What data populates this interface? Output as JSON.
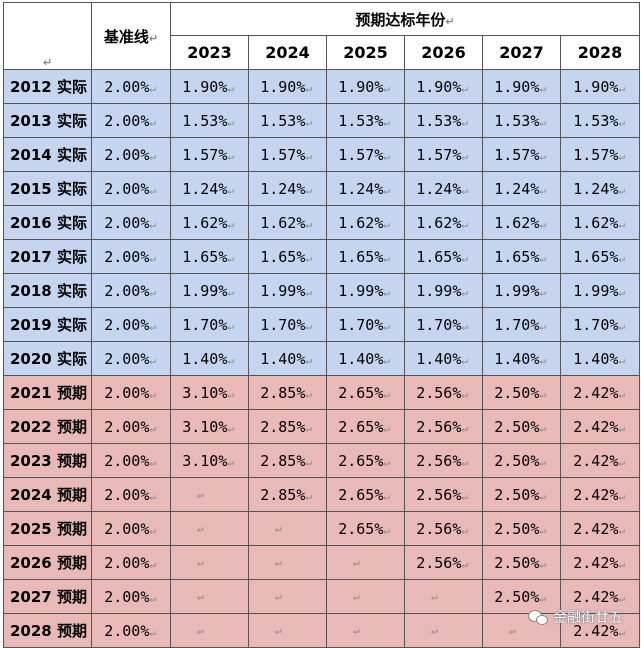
{
  "header": {
    "baseline_label": "基准线",
    "target_label": "预期达标年份",
    "years": [
      "2023",
      "2024",
      "2025",
      "2026",
      "2027",
      "2028"
    ]
  },
  "rows": [
    {
      "label": "2012 实际",
      "type": "actual",
      "baseline": "2.00%",
      "values": [
        "1.90%",
        "1.90%",
        "1.90%",
        "1.90%",
        "1.90%",
        "1.90%"
      ]
    },
    {
      "label": "2013 实际",
      "type": "actual",
      "baseline": "2.00%",
      "values": [
        "1.53%",
        "1.53%",
        "1.53%",
        "1.53%",
        "1.53%",
        "1.53%"
      ]
    },
    {
      "label": "2014 实际",
      "type": "actual",
      "baseline": "2.00%",
      "values": [
        "1.57%",
        "1.57%",
        "1.57%",
        "1.57%",
        "1.57%",
        "1.57%"
      ]
    },
    {
      "label": "2015 实际",
      "type": "actual",
      "baseline": "2.00%",
      "values": [
        "1.24%",
        "1.24%",
        "1.24%",
        "1.24%",
        "1.24%",
        "1.24%"
      ]
    },
    {
      "label": "2016 实际",
      "type": "actual",
      "baseline": "2.00%",
      "values": [
        "1.62%",
        "1.62%",
        "1.62%",
        "1.62%",
        "1.62%",
        "1.62%"
      ]
    },
    {
      "label": "2017 实际",
      "type": "actual",
      "baseline": "2.00%",
      "values": [
        "1.65%",
        "1.65%",
        "1.65%",
        "1.65%",
        "1.65%",
        "1.65%"
      ]
    },
    {
      "label": "2018 实际",
      "type": "actual",
      "baseline": "2.00%",
      "values": [
        "1.99%",
        "1.99%",
        "1.99%",
        "1.99%",
        "1.99%",
        "1.99%"
      ]
    },
    {
      "label": "2019 实际",
      "type": "actual",
      "baseline": "2.00%",
      "values": [
        "1.70%",
        "1.70%",
        "1.70%",
        "1.70%",
        "1.70%",
        "1.70%"
      ]
    },
    {
      "label": "2020 实际",
      "type": "actual",
      "baseline": "2.00%",
      "values": [
        "1.40%",
        "1.40%",
        "1.40%",
        "1.40%",
        "1.40%",
        "1.40%"
      ]
    },
    {
      "label": "2021 预期",
      "type": "forecast",
      "baseline": "2.00%",
      "values": [
        "3.10%",
        "2.85%",
        "2.65%",
        "2.56%",
        "2.50%",
        "2.42%"
      ]
    },
    {
      "label": "2022 预期",
      "type": "forecast",
      "baseline": "2.00%",
      "values": [
        "3.10%",
        "2.85%",
        "2.65%",
        "2.56%",
        "2.50%",
        "2.42%"
      ]
    },
    {
      "label": "2023 预期",
      "type": "forecast",
      "baseline": "2.00%",
      "values": [
        "3.10%",
        "2.85%",
        "2.65%",
        "2.56%",
        "2.50%",
        "2.42%"
      ]
    },
    {
      "label": "2024 预期",
      "type": "forecast",
      "baseline": "2.00%",
      "values": [
        "",
        "2.85%",
        "2.65%",
        "2.56%",
        "2.50%",
        "2.42%"
      ]
    },
    {
      "label": "2025 预期",
      "type": "forecast",
      "baseline": "2.00%",
      "values": [
        "",
        "",
        "2.65%",
        "2.56%",
        "2.50%",
        "2.42%"
      ]
    },
    {
      "label": "2026 预期",
      "type": "forecast",
      "baseline": "2.00%",
      "values": [
        "",
        "",
        "",
        "2.56%",
        "2.50%",
        "2.42%"
      ]
    },
    {
      "label": "2027 预期",
      "type": "forecast",
      "baseline": "2.00%",
      "values": [
        "",
        "",
        "",
        "",
        "2.50%",
        "2.42%"
      ]
    },
    {
      "label": "2028 预期",
      "type": "forecast",
      "baseline": "2.00%",
      "values": [
        "",
        "",
        "",
        "",
        "",
        "2.42%"
      ]
    }
  ],
  "watermark": {
    "text": "金融街廿五"
  },
  "colors": {
    "actual_bg": "#c5d5ef",
    "forecast_bg": "#e8b9b6"
  }
}
